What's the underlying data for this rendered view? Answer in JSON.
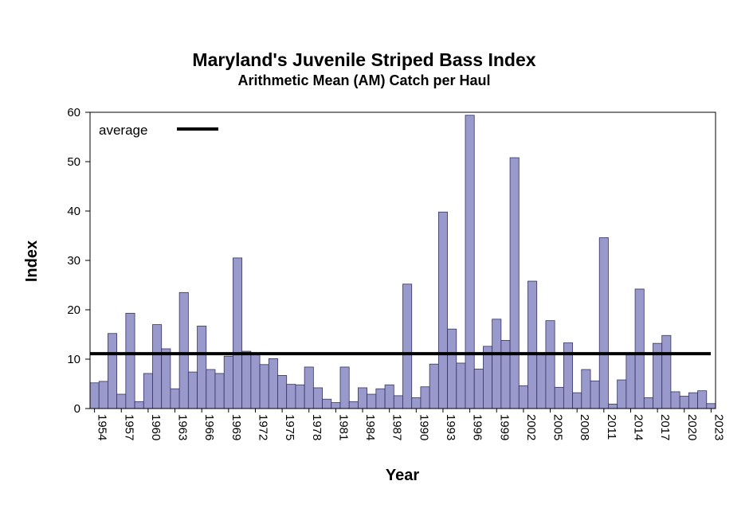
{
  "chart_data": {
    "type": "bar",
    "title": "Maryland's Juvenile Striped Bass Index",
    "subtitle": "Arithmetic Mean (AM) Catch per Haul",
    "xlabel": "Year",
    "ylabel": "Index",
    "ylim": [
      0,
      60
    ],
    "yticks": [
      0,
      10,
      20,
      30,
      40,
      50,
      60
    ],
    "xtick_labels": [
      "1954",
      "1957",
      "1960",
      "1963",
      "1966",
      "1969",
      "1972",
      "1975",
      "1978",
      "1981",
      "1984",
      "1987",
      "1990",
      "1993",
      "1996",
      "1999",
      "2002",
      "2005",
      "2008",
      "2011",
      "2014",
      "2017",
      "2020",
      "2023"
    ],
    "grid": false,
    "legend": {
      "label": "average",
      "position": "top-left"
    },
    "average": 11.1,
    "categories": [
      1954,
      1955,
      1956,
      1957,
      1958,
      1959,
      1960,
      1961,
      1962,
      1963,
      1964,
      1965,
      1966,
      1967,
      1968,
      1969,
      1970,
      1971,
      1972,
      1973,
      1974,
      1975,
      1976,
      1977,
      1978,
      1979,
      1980,
      1981,
      1982,
      1983,
      1984,
      1985,
      1986,
      1987,
      1988,
      1989,
      1990,
      1991,
      1992,
      1993,
      1994,
      1995,
      1996,
      1997,
      1998,
      1999,
      2000,
      2001,
      2002,
      2003,
      2004,
      2005,
      2006,
      2007,
      2008,
      2009,
      2010,
      2011,
      2012,
      2013,
      2014,
      2015,
      2016,
      2017,
      2018,
      2019,
      2020,
      2021,
      2022,
      2023
    ],
    "values": [
      5.2,
      5.5,
      15.2,
      2.9,
      19.3,
      1.4,
      7.1,
      17.0,
      12.1,
      4.0,
      23.5,
      7.4,
      16.7,
      7.9,
      7.1,
      10.6,
      30.5,
      11.6,
      11.0,
      8.9,
      10.1,
      6.7,
      4.9,
      4.8,
      8.4,
      4.2,
      1.9,
      1.2,
      8.4,
      1.4,
      4.2,
      2.9,
      4.0,
      4.8,
      2.6,
      25.2,
      2.2,
      4.4,
      9.0,
      39.8,
      16.1,
      9.2,
      59.4,
      8.0,
      12.6,
      18.1,
      13.8,
      50.8,
      4.6,
      25.8,
      11.0,
      17.8,
      4.3,
      13.3,
      3.2,
      7.9,
      5.6,
      34.6,
      0.9,
      5.8,
      11.0,
      24.2,
      2.2,
      13.2,
      14.8,
      3.4,
      2.5,
      3.2,
      3.6,
      1.0
    ]
  }
}
